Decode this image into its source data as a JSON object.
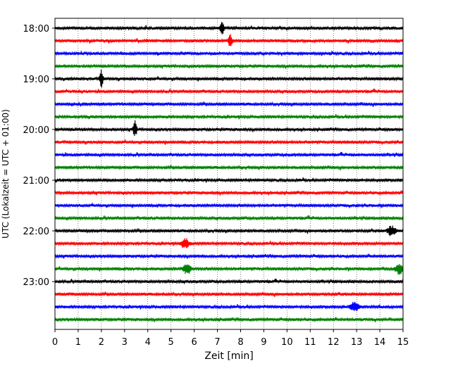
{
  "chart_data": {
    "type": "line",
    "subtype": "helicorder (stacked waveform traces, 15 min per line)",
    "xlabel": "Zeit  [min]",
    "ylabel": "UTC (Lokalzeit = UTC + 01:00)",
    "xlim": [
      0,
      15
    ],
    "x_ticks": [
      "0",
      "1",
      "2",
      "3",
      "4",
      "5",
      "6",
      "7",
      "8",
      "9",
      "10",
      "11",
      "12",
      "13",
      "14",
      "15"
    ],
    "y_ticks": [
      "18:00",
      "19:00",
      "20:00",
      "21:00",
      "22:00",
      "23:00"
    ],
    "grid": "vertical dotted lines at each minute",
    "trace_colors": [
      "#000000",
      "#ff0000",
      "#0000ff",
      "#008000"
    ],
    "trace_start_times": [
      "18:00",
      "18:15",
      "18:30",
      "18:45",
      "19:00",
      "19:15",
      "19:30",
      "19:45",
      "20:00",
      "20:15",
      "20:30",
      "20:45",
      "21:00",
      "21:15",
      "21:30",
      "21:45",
      "22:00",
      "22:15",
      "22:30",
      "22:45",
      "23:00",
      "23:15",
      "23:30",
      "23:45"
    ],
    "notable_events": [
      {
        "trace": "18:00",
        "minute": 7.2,
        "label": "spike"
      },
      {
        "trace": "18:15",
        "minute": 7.55,
        "label": "spike"
      },
      {
        "trace": "19:00",
        "minute": 2.0,
        "label": "spike"
      },
      {
        "trace": "20:00",
        "minute": 3.45,
        "label": "spike"
      },
      {
        "trace": "22:00",
        "minute": 14.5,
        "label": "burst"
      },
      {
        "trace": "22:15",
        "minute": 5.6,
        "label": "burst"
      },
      {
        "trace": "22:45",
        "minute": 5.7,
        "label": "burst"
      },
      {
        "trace": "22:45",
        "minute": 14.85,
        "label": "burst"
      },
      {
        "trace": "23:30",
        "minute": 12.9,
        "label": "burst"
      }
    ]
  }
}
